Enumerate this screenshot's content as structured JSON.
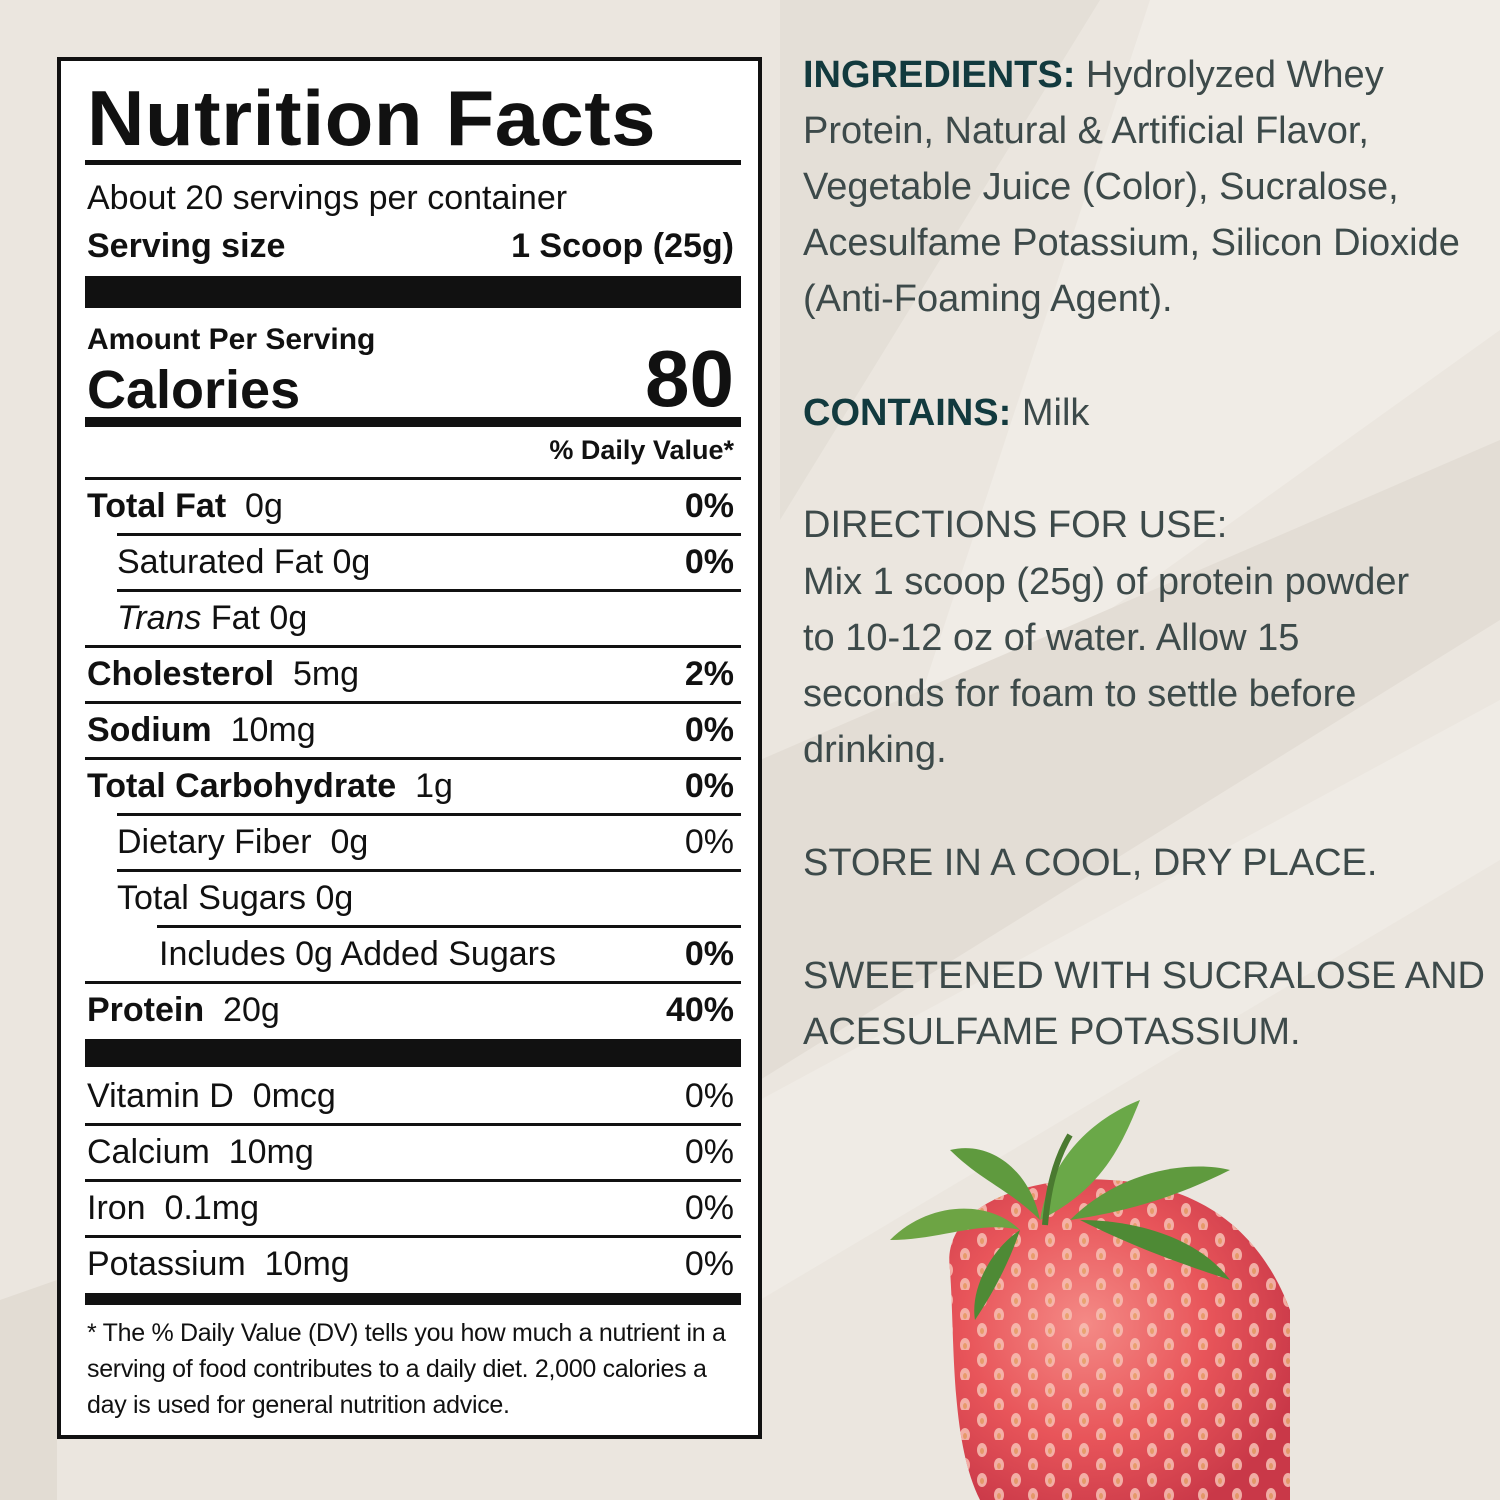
{
  "label": {
    "title": "Nutrition Facts",
    "servings_per_container": "About 20 servings per container",
    "serving_size_label": "Serving size",
    "serving_size_value": "1 Scoop (25g)",
    "amount_per_serving": "Amount Per Serving",
    "calories_label": "Calories",
    "calories_value": "80",
    "daily_value_header": "% Daily Value*",
    "rows": [
      {
        "name": "Total Fat",
        "amount": "0g",
        "pct": "0%"
      },
      {
        "name": "Saturated Fat 0g",
        "amount": "",
        "pct": "0%"
      },
      {
        "name_italic": "Trans",
        "name": " Fat 0g",
        "amount": "",
        "pct": ""
      },
      {
        "name": "Cholesterol",
        "amount": "5mg",
        "pct": "2%"
      },
      {
        "name": "Sodium",
        "amount": "10mg",
        "pct": "0%"
      },
      {
        "name": "Total Carbohydrate",
        "amount": "1g",
        "pct": "0%"
      },
      {
        "name": "Dietary Fiber",
        "amount": "0g",
        "pct": "0%"
      },
      {
        "name": "Total Sugars 0g",
        "amount": "",
        "pct": ""
      },
      {
        "name": "Includes 0g Added Sugars",
        "amount": "",
        "pct": "0%"
      },
      {
        "name": "Protein",
        "amount": "20g",
        "pct": "40%"
      }
    ],
    "vitamins": [
      {
        "name": "Vitamin D",
        "amount": "0mcg",
        "pct": "0%"
      },
      {
        "name": "Calcium",
        "amount": "10mg",
        "pct": "0%"
      },
      {
        "name": "Iron",
        "amount": "0.1mg",
        "pct": "0%"
      },
      {
        "name": "Potassium",
        "amount": "10mg",
        "pct": "0%"
      }
    ],
    "footnote": "* The % Daily Value (DV) tells you how much a nutrient in a serving of food contributes to a daily diet. 2,000 calories a day is used for general nutrition advice."
  },
  "info": {
    "ingredients_label": "INGREDIENTS:",
    "ingredients_text": "Hydrolyzed Whey Protein, Natural & Artificial Flavor, Vegetable Juice (Color), Sucralose, Acesulfame Potassium, Silicon Dioxide (Anti-Foaming Agent).",
    "contains_label": "CONTAINS:",
    "contains_text": "Milk",
    "directions_label": "DIRECTIONS FOR USE:",
    "directions_text": "Mix 1 scoop (25g) of protein powder to 10-12 oz of water. Allow 15 seconds for foam to settle before drinking.",
    "storage": "STORE IN A COOL, DRY PLACE.",
    "sweetener": "SWEETENED WITH SUCRALOSE AND ACESULFAME POTASSIUM."
  },
  "colors": {
    "background": "#ebe6df",
    "heading_teal": "#123a3e",
    "body_text": "#3d4a4a",
    "strawberry": "#e8555a",
    "leaf": "#5f9a3e"
  }
}
